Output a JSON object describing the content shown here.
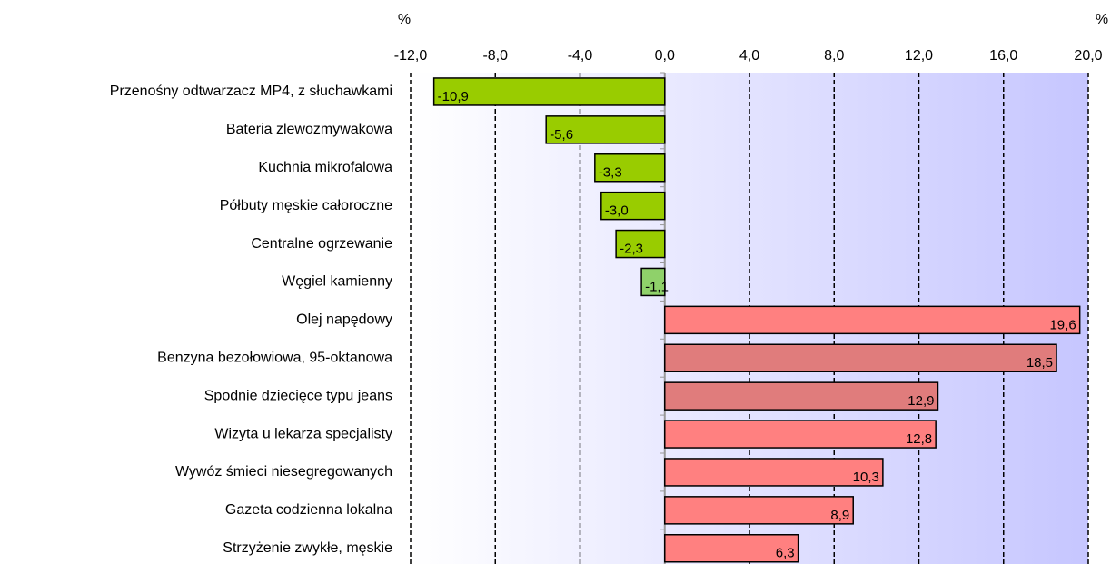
{
  "chart_data": {
    "type": "hbar",
    "axis_labels": [
      "%",
      "%"
    ],
    "categories": [
      "Przenośny odtwarzacz MP4, z słuchawkami",
      "Bateria zlewozmywakowa",
      "Kuchnia mikrofalowa",
      "Półbuty męskie całoroczne",
      "Centralne ogrzewanie",
      "Węgiel kamienny",
      "Olej napędowy",
      "Benzyna bezołowiowa, 95-oktanowa",
      "Spodnie dziecięce typu jeans",
      "Wizyta u lekarza specjalisty",
      "Wywóz śmieci niesegregowanych",
      "Gazeta codzienna lokalna",
      "Strzyżenie zwykłe, męskie"
    ],
    "values": [
      -10.9,
      -5.6,
      -3.3,
      -3.0,
      -2.3,
      -1.1,
      19.6,
      18.5,
      12.9,
      12.8,
      10.3,
      8.9,
      6.3
    ],
    "value_labels": [
      "-10,9",
      "-5,6",
      "-3,3",
      "-3,0",
      "-2,3",
      "-1,1",
      "19,6",
      "18,5",
      "12,9",
      "12,8",
      "10,3",
      "8,9",
      "6,3"
    ],
    "colors": [
      "#99cc00",
      "#99cc00",
      "#99cc00",
      "#99cc00",
      "#99cc00",
      "#8fd16a",
      "#ff8080",
      "#e07c7c",
      "#e07c7c",
      "#ff8080",
      "#ff8080",
      "#ff8080",
      "#ff8080"
    ],
    "xlim": [
      -12,
      20
    ],
    "xticks": [
      {
        "value": -12,
        "label": "-12,0"
      },
      {
        "value": -8,
        "label": "-8,0"
      },
      {
        "value": -4,
        "label": "-4,0"
      },
      {
        "value": 0,
        "label": "0,0"
      },
      {
        "value": 4,
        "label": "4,0"
      },
      {
        "value": 8,
        "label": "8,0"
      },
      {
        "value": 12,
        "label": "12,0"
      },
      {
        "value": 16,
        "label": "16,0"
      },
      {
        "value": 20,
        "label": "20,0"
      }
    ],
    "grid": true
  }
}
